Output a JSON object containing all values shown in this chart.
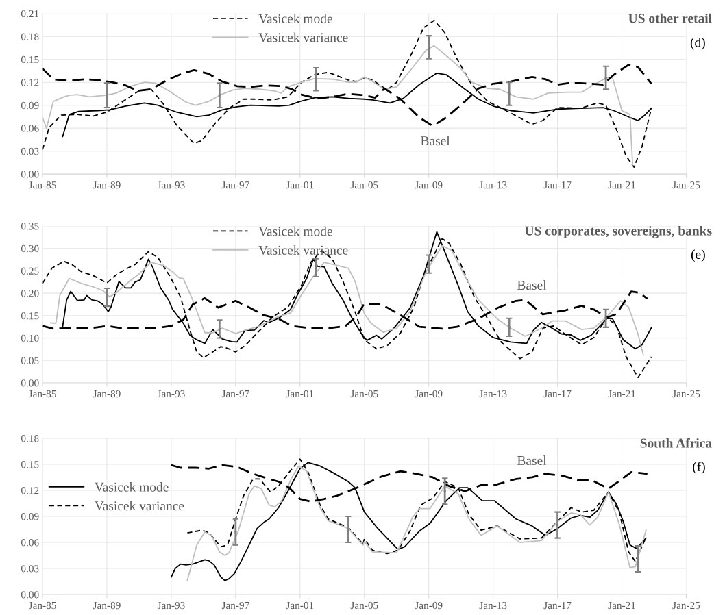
{
  "chart_data": [
    {
      "type": "line",
      "title": "US other retail",
      "subtitle": "(d)",
      "legend": "top",
      "grid": true,
      "marker": "none",
      "xlim": [
        "1985-01",
        "2025-01"
      ],
      "xticks": [
        {
          "value": "1985-01",
          "label": "Jan-85"
        },
        {
          "value": "1989-01",
          "label": "Jan-89"
        },
        {
          "value": "1993-01",
          "label": "Jan-93"
        },
        {
          "value": "1997-01",
          "label": "Jan-97"
        },
        {
          "value": "2001-01",
          "label": "Jan-01"
        },
        {
          "value": "2005-01",
          "label": "Jan-05"
        },
        {
          "value": "2009-01",
          "label": "Jan-09"
        },
        {
          "value": "2013-01",
          "label": "Jan-13"
        },
        {
          "value": "2017-01",
          "label": "Jan-17"
        },
        {
          "value": "2021-01",
          "label": "Jan-21"
        },
        {
          "value": "2025-01",
          "label": "Jan-25"
        }
      ],
      "ylim": [
        0,
        0.21
      ],
      "yticks": [
        {
          "value": 0,
          "label": "0.00"
        },
        {
          "value": 0.03,
          "label": "0.03"
        },
        {
          "value": 0.06,
          "label": "0.06"
        },
        {
          "value": 0.09,
          "label": "0.09"
        },
        {
          "value": 0.12,
          "label": "0.12"
        },
        {
          "value": 0.15,
          "label": "0.15"
        },
        {
          "value": 0.18,
          "label": "0.18"
        },
        {
          "value": 0.21,
          "label": "0.21"
        }
      ],
      "annotations": [
        "Basel"
      ],
      "series": [
        {
          "type": "line",
          "color": "#000000",
          "line_style": "solid",
          "x": [
            "1986-04",
            "1986-09",
            "1987-04",
            "1988-06",
            "1989-03",
            "1990-03",
            "1991-05",
            "1992-03",
            "1993-05",
            "1994-08",
            "1995-05",
            "1996-03",
            "1997-02",
            "1997-12",
            "1999-09",
            "2000-05",
            "2001-01",
            "2001-12",
            "2003-01",
            "2004-01",
            "2005-01",
            "2005-07",
            "2006-08",
            "2007-06",
            "2008-06",
            "2009-07",
            "2010-02",
            "2011-04",
            "2012-02",
            "2013-01",
            "2014-02",
            "2015-07",
            "2017-01",
            "2018-06",
            "2019-11",
            "2020-07",
            "2021-07",
            "2022-01",
            "2022-06",
            "2022-11"
          ],
          "values": [
            0.049,
            0.078,
            0.082,
            0.083,
            0.084,
            0.089,
            0.093,
            0.09,
            0.081,
            0.075,
            0.077,
            0.084,
            0.088,
            0.09,
            0.089,
            0.09,
            0.095,
            0.1,
            0.101,
            0.099,
            0.098,
            0.097,
            0.093,
            0.099,
            0.117,
            0.132,
            0.13,
            0.111,
            0.098,
            0.089,
            0.083,
            0.08,
            0.085,
            0.086,
            0.087,
            0.083,
            0.074,
            0.07,
            0.077,
            0.086
          ]
        },
        {
          "type": "line",
          "name": "Vasicek mode",
          "color": "#000000",
          "line_style": "dashed",
          "x": [
            "1985-01",
            "1985-06",
            "1986-03",
            "1987-03",
            "1988-03",
            "1989-01",
            "1990-01",
            "1991-01",
            "1991-10",
            "1992-07",
            "1993-05",
            "1994-06",
            "1994-12",
            "1995-10",
            "1996-09",
            "1997-07",
            "1998-03",
            "1999-05",
            "2000-04",
            "2001-02",
            "2001-12",
            "2002-10",
            "2004-01",
            "2004-07",
            "2005-01",
            "2005-07",
            "2006-06",
            "2007-01",
            "2008-01",
            "2008-09",
            "2009-05",
            "2010-01",
            "2010-10",
            "2011-09",
            "2012-09",
            "2014-02",
            "2015-06",
            "2016-02",
            "2017-01",
            "2018-06",
            "2019-07",
            "2020-01",
            "2020-09",
            "2021-04",
            "2021-10",
            "2022-04",
            "2022-11"
          ],
          "values": [
            0.032,
            0.061,
            0.077,
            0.078,
            0.076,
            0.081,
            0.095,
            0.109,
            0.111,
            0.092,
            0.064,
            0.04,
            0.044,
            0.067,
            0.087,
            0.098,
            0.098,
            0.097,
            0.101,
            0.12,
            0.13,
            0.133,
            0.123,
            0.121,
            0.126,
            0.123,
            0.11,
            0.12,
            0.16,
            0.191,
            0.201,
            0.185,
            0.151,
            0.117,
            0.095,
            0.08,
            0.065,
            0.07,
            0.087,
            0.086,
            0.093,
            0.09,
            0.058,
            0.024,
            0.009,
            0.036,
            0.086
          ]
        },
        {
          "type": "line",
          "name": "Vasicek variance",
          "color": "#bfbfbf",
          "line_style": "solid",
          "x": [
            "1985-01",
            "1985-04",
            "1985-09",
            "1986-05",
            "1986-09",
            "1987-03",
            "1987-12",
            "1988-12",
            "1989-08",
            "1990-07",
            "1991-05",
            "1992-01",
            "1993-01",
            "1993-12",
            "1994-07",
            "1995-05",
            "1996-02",
            "1996-11",
            "1997-08",
            "1998-07",
            "1999-05",
            "1999-11",
            "2000-04",
            "2001-02",
            "2001-12",
            "2003-02",
            "2004-01",
            "2004-07",
            "2005-01",
            "2005-07",
            "2006-04",
            "2007-01",
            "2007-11",
            "2008-11",
            "2009-05",
            "2010-04",
            "2011-01",
            "2011-09",
            "2012-09",
            "2013-06",
            "2014-06",
            "2015-07",
            "2016-06",
            "2017-09",
            "2018-07",
            "2019-04",
            "2020-02",
            "2020-06",
            "2021-01",
            "2021-07",
            "2021-09"
          ],
          "values": [
            0.074,
            0.06,
            0.095,
            0.101,
            0.103,
            0.104,
            0.101,
            0.103,
            0.106,
            0.115,
            0.12,
            0.119,
            0.107,
            0.094,
            0.09,
            0.095,
            0.104,
            0.11,
            0.112,
            0.111,
            0.109,
            0.106,
            0.114,
            0.12,
            0.125,
            0.124,
            0.12,
            0.12,
            0.127,
            0.121,
            0.111,
            0.114,
            0.135,
            0.162,
            0.168,
            0.152,
            0.138,
            0.12,
            0.112,
            0.111,
            0.101,
            0.098,
            0.106,
            0.107,
            0.107,
            0.117,
            0.126,
            0.126,
            0.083,
            0.078,
            0.012
          ]
        },
        {
          "type": "line",
          "color": "#000000",
          "line_style": "dashed",
          "x": [
            "1985-01",
            "1985-09",
            "1986-09",
            "1987-08",
            "1988-06",
            "1989-05",
            "1990-03",
            "1990-12",
            "1991-10",
            "1992-10",
            "1993-10",
            "1994-06",
            "1995-05",
            "1996-03",
            "1997-02",
            "1997-12",
            "1998-12",
            "1999-12",
            "2000-07",
            "2001-02",
            "2001-09",
            "2002-04",
            "2003-04",
            "2004-01",
            "2005-01",
            "2005-09",
            "2006-04",
            "2007-04",
            "2008-06",
            "2009-04",
            "2010-02",
            "2011-04",
            "2012-02",
            "2013-01",
            "2014-02",
            "2015-06",
            "2016-04",
            "2017-01",
            "2017-09",
            "2018-06",
            "2019-11",
            "2020-07",
            "2021-06",
            "2022-01",
            "2022-11"
          ],
          "values": [
            0.138,
            0.124,
            0.122,
            0.124,
            0.123,
            0.12,
            0.116,
            0.109,
            0.111,
            0.123,
            0.132,
            0.136,
            0.131,
            0.121,
            0.115,
            0.114,
            0.116,
            0.115,
            0.111,
            0.104,
            0.101,
            0.099,
            0.102,
            0.105,
            0.103,
            0.1,
            0.112,
            0.098,
            0.074,
            0.063,
            0.074,
            0.095,
            0.112,
            0.118,
            0.121,
            0.127,
            0.124,
            0.117,
            0.119,
            0.119,
            0.117,
            0.13,
            0.143,
            0.14,
            0.118
          ]
        },
        {
          "type": "scatter",
          "color": "#808080",
          "marker": "square",
          "x": [
            "1989-01",
            "1996-01",
            "2002-01",
            "2009-01",
            "2014-01",
            "2020-01"
          ],
          "values": [
            0.103,
            0.103,
            0.124,
            0.166,
            0.105,
            0.126
          ],
          "errors": [
            0.016,
            0.016,
            0.015,
            0.015,
            0.015,
            0.015
          ]
        }
      ]
    },
    {
      "type": "line",
      "title": "US corporates, sovereigns, banks",
      "subtitle": "(e)",
      "legend": "top",
      "grid": true,
      "marker": "none",
      "xlim": [
        "1985-01",
        "2025-01"
      ],
      "xticks": [
        {
          "value": "1985-01",
          "label": "Jan-85"
        },
        {
          "value": "1989-01",
          "label": "Jan-89"
        },
        {
          "value": "1993-01",
          "label": "Jan-93"
        },
        {
          "value": "1997-01",
          "label": "Jan-97"
        },
        {
          "value": "2001-01",
          "label": "Jan-01"
        },
        {
          "value": "2005-01",
          "label": "Jan-05"
        },
        {
          "value": "2009-01",
          "label": "Jan-09"
        },
        {
          "value": "2013-01",
          "label": "Jan-13"
        },
        {
          "value": "2017-01",
          "label": "Jan-17"
        },
        {
          "value": "2021-01",
          "label": "Jan-21"
        },
        {
          "value": "2025-01",
          "label": "Jan-25"
        }
      ],
      "ylim": [
        0,
        0.35
      ],
      "yticks": [
        {
          "value": 0,
          "label": "0.00"
        },
        {
          "value": 0.05,
          "label": "0.05"
        },
        {
          "value": 0.1,
          "label": "0.10"
        },
        {
          "value": 0.15,
          "label": "0.15"
        },
        {
          "value": 0.2,
          "label": "0.20"
        },
        {
          "value": 0.25,
          "label": "0.25"
        },
        {
          "value": 0.3,
          "label": "0.30"
        },
        {
          "value": 0.35,
          "label": "0.35"
        }
      ],
      "annotations": [
        "Basel"
      ],
      "series": [
        {
          "type": "line",
          "color": "#000000",
          "line_style": "solid",
          "x": [
            "1986-04",
            "1986-07",
            "1986-10",
            "1987-03",
            "1987-08",
            "1987-10",
            "1988-02",
            "1988-06",
            "1988-10",
            "1989-02",
            "1989-04",
            "1989-10",
            "1990-03",
            "1990-07",
            "1990-10",
            "1991-02",
            "1991-08",
            "1991-11",
            "1992-05",
            "1992-11",
            "1993-02",
            "1993-10",
            "1994-03",
            "1994-08",
            "1995-02",
            "1995-08",
            "1996-03",
            "1996-10",
            "1997-02",
            "1997-08",
            "1998-03",
            "1998-10",
            "1999-02",
            "1999-09",
            "2000-06",
            "2000-11",
            "2001-06",
            "2001-11",
            "2002-02",
            "2002-07",
            "2003-01",
            "2003-09",
            "2004-04",
            "2004-12",
            "2005-03",
            "2005-10",
            "2006-02",
            "2006-11",
            "2007-11",
            "2008-09",
            "2009-07",
            "2010-02",
            "2010-11",
            "2011-06",
            "2012-02",
            "2013-01",
            "2014-02",
            "2015-02",
            "2015-07",
            "2016-01",
            "2016-09",
            "2017-04",
            "2017-11",
            "2018-06",
            "2019-02",
            "2020-02",
            "2020-06",
            "2021-02",
            "2021-11",
            "2022-04",
            "2022-11"
          ],
          "values": [
            0.125,
            0.185,
            0.204,
            0.184,
            0.185,
            0.195,
            0.185,
            0.183,
            0.175,
            0.159,
            0.169,
            0.226,
            0.212,
            0.212,
            0.225,
            0.23,
            0.276,
            0.259,
            0.212,
            0.185,
            0.164,
            0.133,
            0.106,
            0.096,
            0.088,
            0.119,
            0.098,
            0.092,
            0.091,
            0.117,
            0.118,
            0.139,
            0.135,
            0.144,
            0.164,
            0.196,
            0.233,
            0.277,
            0.26,
            0.259,
            0.222,
            0.185,
            0.143,
            0.104,
            0.095,
            0.106,
            0.098,
            0.122,
            0.167,
            0.238,
            0.337,
            0.285,
            0.217,
            0.159,
            0.127,
            0.101,
            0.091,
            0.088,
            0.117,
            0.135,
            0.122,
            0.109,
            0.107,
            0.095,
            0.106,
            0.144,
            0.143,
            0.096,
            0.076,
            0.085,
            0.123
          ]
        },
        {
          "type": "line",
          "name": "Vasicek mode",
          "color": "#000000",
          "line_style": "dashed",
          "x": [
            "1985-01",
            "1985-08",
            "1986-05",
            "1986-11",
            "1987-06",
            "1988-03",
            "1989-01",
            "1989-08",
            "1990-03",
            "1990-10",
            "1991-08",
            "1992-03",
            "1992-12",
            "1993-08",
            "1994-03",
            "1994-08",
            "1995-01",
            "1995-08",
            "1996-02",
            "1996-07",
            "1997-01",
            "1997-08",
            "1998-07",
            "1999-05",
            "2000-04",
            "2001-02",
            "2001-09",
            "2002-05",
            "2003-01",
            "2003-09",
            "2004-06",
            "2005-01",
            "2005-10",
            "2006-06",
            "2007-04",
            "2008-02",
            "2008-09",
            "2009-11",
            "2010-04",
            "2011-01",
            "2011-11",
            "2012-09",
            "2013-07",
            "2014-09",
            "2015-06",
            "2016-02",
            "2016-10",
            "2017-09",
            "2018-07",
            "2019-04",
            "2020-02",
            "2020-09",
            "2021-04",
            "2022-01",
            "2022-11"
          ],
          "values": [
            0.222,
            0.256,
            0.271,
            0.264,
            0.248,
            0.239,
            0.223,
            0.241,
            0.254,
            0.264,
            0.293,
            0.28,
            0.238,
            0.191,
            0.117,
            0.069,
            0.056,
            0.069,
            0.081,
            0.077,
            0.069,
            0.083,
            0.117,
            0.148,
            0.169,
            0.217,
            0.269,
            0.295,
            0.277,
            0.227,
            0.159,
            0.096,
            0.076,
            0.083,
            0.112,
            0.169,
            0.238,
            0.322,
            0.312,
            0.264,
            0.191,
            0.143,
            0.091,
            0.054,
            0.069,
            0.122,
            0.127,
            0.104,
            0.085,
            0.101,
            0.146,
            0.127,
            0.059,
            0.012,
            0.058
          ]
        },
        {
          "type": "line",
          "name": "Vasicek variance",
          "color": "#bfbfbf",
          "line_style": "solid",
          "x": [
            "1985-07",
            "1985-11",
            "1986-02",
            "1986-09",
            "1987-06",
            "1988-03",
            "1988-10",
            "1989-03",
            "1989-08",
            "1990-06",
            "1991-01",
            "1991-10",
            "1992-07",
            "1993-02",
            "1993-07",
            "1993-10",
            "1994-05",
            "1995-02",
            "1995-08",
            "1996-03",
            "1997-01",
            "1997-08",
            "1998-07",
            "1999-09",
            "2000-06",
            "2001-02",
            "2001-11",
            "2002-07",
            "2003-05",
            "2004-01",
            "2004-06",
            "2004-11",
            "2005-01",
            "2005-06",
            "2006-03",
            "2007-01",
            "2007-11",
            "2008-11",
            "2009-11",
            "2010-06",
            "2011-04",
            "2012-02",
            "2013-04",
            "2014-02",
            "2015-01",
            "2016-01",
            "2016-09",
            "2017-07",
            "2018-07",
            "2019-04",
            "2020-02",
            "2020-12",
            "2021-06",
            "2022-01",
            "2022-05"
          ],
          "values": [
            0.134,
            0.133,
            0.196,
            0.233,
            0.222,
            0.214,
            0.206,
            0.192,
            0.201,
            0.227,
            0.243,
            0.269,
            0.262,
            0.248,
            0.234,
            0.233,
            0.185,
            0.112,
            0.112,
            0.122,
            0.11,
            0.117,
            0.127,
            0.148,
            0.156,
            0.196,
            0.238,
            0.269,
            0.262,
            0.256,
            0.227,
            0.175,
            0.154,
            0.133,
            0.113,
            0.122,
            0.159,
            0.248,
            0.306,
            0.296,
            0.238,
            0.185,
            0.143,
            0.122,
            0.104,
            0.122,
            0.138,
            0.138,
            0.119,
            0.122,
            0.148,
            0.183,
            0.169,
            0.109,
            0.062
          ]
        },
        {
          "type": "line",
          "color": "#000000",
          "line_style": "dashed",
          "x": [
            "1985-01",
            "1985-09",
            "1986-09",
            "1988-03",
            "1989-01",
            "1989-10",
            "1991-01",
            "1992-03",
            "1993-01",
            "1993-10",
            "1994-05",
            "1995-02",
            "1995-12",
            "1997-01",
            "1997-12",
            "1998-10",
            "1999-09",
            "2000-07",
            "2001-09",
            "2002-11",
            "2003-11",
            "2004-07",
            "2005-01",
            "2006-02",
            "2007-04",
            "2008-06",
            "2009-11",
            "2010-10",
            "2012-02",
            "2013-04",
            "2014-06",
            "2015-01",
            "2016-02",
            "2017-07",
            "2018-07",
            "2019-04",
            "2020-02",
            "2020-09",
            "2021-08",
            "2022-02",
            "2022-08"
          ],
          "values": [
            0.127,
            0.121,
            0.122,
            0.123,
            0.127,
            0.123,
            0.122,
            0.123,
            0.127,
            0.141,
            0.175,
            0.189,
            0.168,
            0.183,
            0.167,
            0.151,
            0.143,
            0.127,
            0.122,
            0.122,
            0.127,
            0.148,
            0.177,
            0.175,
            0.151,
            0.125,
            0.121,
            0.125,
            0.143,
            0.167,
            0.183,
            0.185,
            0.153,
            0.162,
            0.172,
            0.164,
            0.146,
            0.154,
            0.204,
            0.201,
            0.188
          ]
        },
        {
          "type": "scatter",
          "color": "#808080",
          "marker": "square",
          "x": [
            "1989-01",
            "1996-01",
            "2002-01",
            "2009-01",
            "2014-01",
            "2020-01"
          ],
          "values": [
            0.191,
            0.12,
            0.257,
            0.265,
            0.124,
            0.144
          ],
          "errors": [
            0.02,
            0.02,
            0.02,
            0.02,
            0.02,
            0.02
          ]
        }
      ]
    },
    {
      "type": "line",
      "title": "South Africa",
      "subtitle": "(f)",
      "legend": "left",
      "grid": true,
      "marker": "none",
      "xlim": [
        "1985-01",
        "2025-01"
      ],
      "xticks": [
        {
          "value": "1985-01",
          "label": "Jan-85"
        },
        {
          "value": "1989-01",
          "label": "Jan-89"
        },
        {
          "value": "1993-01",
          "label": "Jan-93"
        },
        {
          "value": "1997-01",
          "label": "Jan-97"
        },
        {
          "value": "2001-01",
          "label": "Jan-01"
        },
        {
          "value": "2005-01",
          "label": "Jan-05"
        },
        {
          "value": "2009-01",
          "label": "Jan-09"
        },
        {
          "value": "2013-01",
          "label": "Jan-13"
        },
        {
          "value": "2017-01",
          "label": "Jan-17"
        },
        {
          "value": "2021-01",
          "label": "Jan-21"
        },
        {
          "value": "2025-01",
          "label": "Jan-25"
        }
      ],
      "ylim": [
        0,
        0.18
      ],
      "yticks": [
        {
          "value": 0,
          "label": "0.00"
        },
        {
          "value": 0.03,
          "label": "0.03"
        },
        {
          "value": 0.06,
          "label": "0.06"
        },
        {
          "value": 0.09,
          "label": "0.09"
        },
        {
          "value": 0.12,
          "label": "0.12"
        },
        {
          "value": 0.15,
          "label": "0.15"
        },
        {
          "value": 0.18,
          "label": "0.18"
        }
      ],
      "annotations": [
        "Basel"
      ],
      "series": [
        {
          "type": "line",
          "name": "Vasicek mode",
          "color": "#000000",
          "line_style": "solid",
          "x": [
            "1993-01",
            "1993-04",
            "1993-08",
            "1993-12",
            "1994-05",
            "1995-02",
            "1995-05",
            "1995-09",
            "1996-02",
            "1996-05",
            "1996-08",
            "1996-12",
            "1997-05",
            "1997-12",
            "1998-05",
            "1998-10",
            "1999-02",
            "1999-09",
            "2000-04",
            "2001-01",
            "2001-07",
            "2002-04",
            "2003-02",
            "2004-01",
            "2004-06",
            "2005-01",
            "2005-11",
            "2007-02",
            "2007-07",
            "2008-06",
            "2009-02",
            "2010-02",
            "2010-12",
            "2011-06",
            "2012-05",
            "2013-02",
            "2014-06",
            "2015-06",
            "2016-04",
            "2017-01",
            "2017-11",
            "2018-06",
            "2019-01",
            "2019-07",
            "2020-03",
            "2020-09",
            "2021-02",
            "2021-07",
            "2021-12",
            "2022-07"
          ],
          "values": [
            0.02,
            0.03,
            0.035,
            0.034,
            0.035,
            0.04,
            0.039,
            0.034,
            0.02,
            0.016,
            0.018,
            0.024,
            0.038,
            0.06,
            0.076,
            0.083,
            0.087,
            0.1,
            0.119,
            0.145,
            0.152,
            0.148,
            0.14,
            0.13,
            0.123,
            0.095,
            0.076,
            0.052,
            0.055,
            0.073,
            0.082,
            0.108,
            0.123,
            0.123,
            0.108,
            0.108,
            0.087,
            0.079,
            0.068,
            0.076,
            0.088,
            0.091,
            0.089,
            0.097,
            0.118,
            0.104,
            0.084,
            0.057,
            0.053,
            0.065
          ]
        },
        {
          "type": "line",
          "name": "Vasicek variance",
          "color": "#000000",
          "line_style": "dashed",
          "x": [
            "1994-01",
            "1994-12",
            "1995-05",
            "1996-02",
            "1996-07",
            "1997-01",
            "1997-07",
            "1998-02",
            "1998-07",
            "1999-03",
            "1999-09",
            "2000-04",
            "2001-01",
            "2001-07",
            "2002-04",
            "2002-10",
            "2004-01",
            "2004-12",
            "2005-01",
            "2005-07",
            "2006-06",
            "2007-02",
            "2007-11",
            "2008-07",
            "2009-04",
            "2010-01",
            "2010-11",
            "2011-07",
            "2012-04",
            "2013-04",
            "2014-09",
            "2016-01",
            "2017-01",
            "2017-11",
            "2018-07",
            "2019-04",
            "2020-03",
            "2020-11",
            "2021-06",
            "2021-11",
            "2022-07"
          ],
          "values": [
            0.071,
            0.074,
            0.071,
            0.055,
            0.057,
            0.087,
            0.114,
            0.133,
            0.133,
            0.118,
            0.125,
            0.139,
            0.156,
            0.141,
            0.103,
            0.087,
            0.077,
            0.058,
            0.064,
            0.051,
            0.047,
            0.051,
            0.073,
            0.103,
            0.111,
            0.13,
            0.123,
            0.092,
            0.074,
            0.079,
            0.064,
            0.065,
            0.084,
            0.1,
            0.095,
            0.097,
            0.118,
            0.095,
            0.049,
            0.038,
            0.066
          ]
        },
        {
          "type": "line",
          "color": "#bfbfbf",
          "line_style": "solid",
          "x": [
            "1994-01",
            "1994-08",
            "1995-02",
            "1995-07",
            "1996-01",
            "1996-05",
            "1996-08",
            "1997-03",
            "1997-11",
            "1998-03",
            "1998-08",
            "1999-02",
            "1999-06",
            "1999-11",
            "2000-07",
            "2000-12",
            "2001-06",
            "2002-04",
            "2002-10",
            "2004-01",
            "2004-12",
            "2005-01",
            "2005-07",
            "2007-01",
            "2008-01",
            "2008-06",
            "2009-02",
            "2010-01",
            "2010-11",
            "2011-07",
            "2012-04",
            "2013-04",
            "2014-09",
            "2016-01",
            "2017-01",
            "2017-11",
            "2018-06",
            "2019-01",
            "2019-07",
            "2020-03",
            "2020-11",
            "2021-07",
            "2021-11",
            "2022-07"
          ],
          "values": [
            0.016,
            0.057,
            0.072,
            0.068,
            0.049,
            0.045,
            0.048,
            0.073,
            0.116,
            0.125,
            0.122,
            0.103,
            0.101,
            0.107,
            0.135,
            0.148,
            0.142,
            0.1,
            0.085,
            0.076,
            0.057,
            0.061,
            0.049,
            0.048,
            0.089,
            0.099,
            0.099,
            0.125,
            0.116,
            0.087,
            0.068,
            0.079,
            0.06,
            0.062,
            0.084,
            0.094,
            0.092,
            0.08,
            0.089,
            0.118,
            0.081,
            0.031,
            0.032,
            0.074
          ]
        },
        {
          "type": "line",
          "color": "#000000",
          "line_style": "dashed",
          "x": [
            "1993-01",
            "1993-08",
            "1994-07",
            "1995-05",
            "1996-03",
            "1997-02",
            "1998-02",
            "1998-12",
            "1999-09",
            "2000-05",
            "2001-01",
            "2001-09",
            "2002-07",
            "2003-05",
            "2004-06",
            "2005-01",
            "2006-02",
            "2007-04",
            "2008-04",
            "2009-04",
            "2010-04",
            "2011-04",
            "2012-04",
            "2013-02",
            "2014-06",
            "2015-06",
            "2016-04",
            "2017-04",
            "2018-04",
            "2019-02",
            "2020-03",
            "2021-01",
            "2021-08",
            "2022-08"
          ],
          "values": [
            0.149,
            0.146,
            0.146,
            0.145,
            0.149,
            0.147,
            0.139,
            0.134,
            0.13,
            0.123,
            0.11,
            0.107,
            0.11,
            0.114,
            0.122,
            0.127,
            0.136,
            0.142,
            0.139,
            0.135,
            0.125,
            0.119,
            0.126,
            0.126,
            0.133,
            0.135,
            0.139,
            0.137,
            0.132,
            0.132,
            0.122,
            0.133,
            0.141,
            0.139
          ]
        },
        {
          "type": "scatter",
          "color": "#808080",
          "marker": "square",
          "x": [
            "1997-01",
            "2004-01",
            "2010-01",
            "2017-01",
            "2022-01"
          ],
          "values": [
            0.072,
            0.075,
            0.119,
            0.08,
            0.041
          ],
          "errors": [
            0.015,
            0.015,
            0.015,
            0.015,
            0.015
          ]
        }
      ]
    }
  ]
}
